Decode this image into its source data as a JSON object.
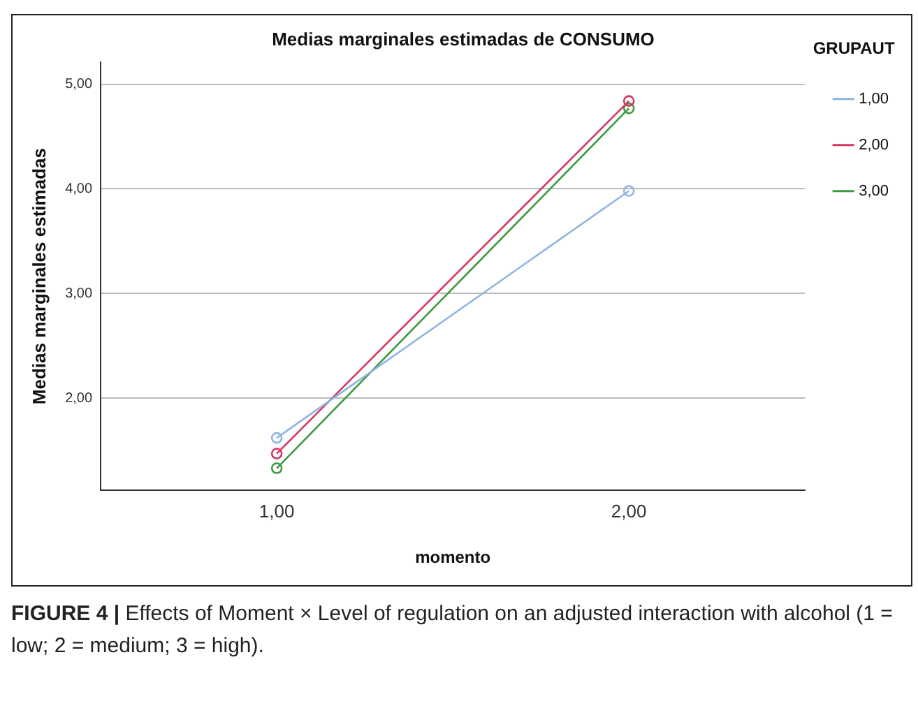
{
  "chart_data": {
    "type": "line",
    "title": "Medias marginales estimadas de CONSUMO",
    "xlabel": "momento",
    "ylabel": "Medias marginales estimadas",
    "legend_title": "GRUPAUT",
    "categories": [
      "1,00",
      "2,00"
    ],
    "series": [
      {
        "name": "1,00",
        "color": "#8fb4e3",
        "values": [
          1.62,
          3.98
        ]
      },
      {
        "name": "2,00",
        "color": "#d5365f",
        "values": [
          1.47,
          4.84
        ]
      },
      {
        "name": "3,00",
        "color": "#3c9a3c",
        "values": [
          1.33,
          4.77
        ]
      }
    ],
    "ylim": [
      1.12,
      5.21
    ],
    "yticks": [
      {
        "value": 2,
        "label": "2,00"
      },
      {
        "value": 3,
        "label": "3,00"
      },
      {
        "value": 4,
        "label": "4,00"
      },
      {
        "value": 5,
        "label": "5,00"
      }
    ],
    "grid": "y",
    "legend": "top right",
    "marker": "circle",
    "line_style": "solid",
    "annotations": [
      "FIGURE 4 | Effects of Moment × Level of regulation on an adjusted interaction with alcohol (1 = low; 2 = medium; 3 = high)."
    ]
  }
}
